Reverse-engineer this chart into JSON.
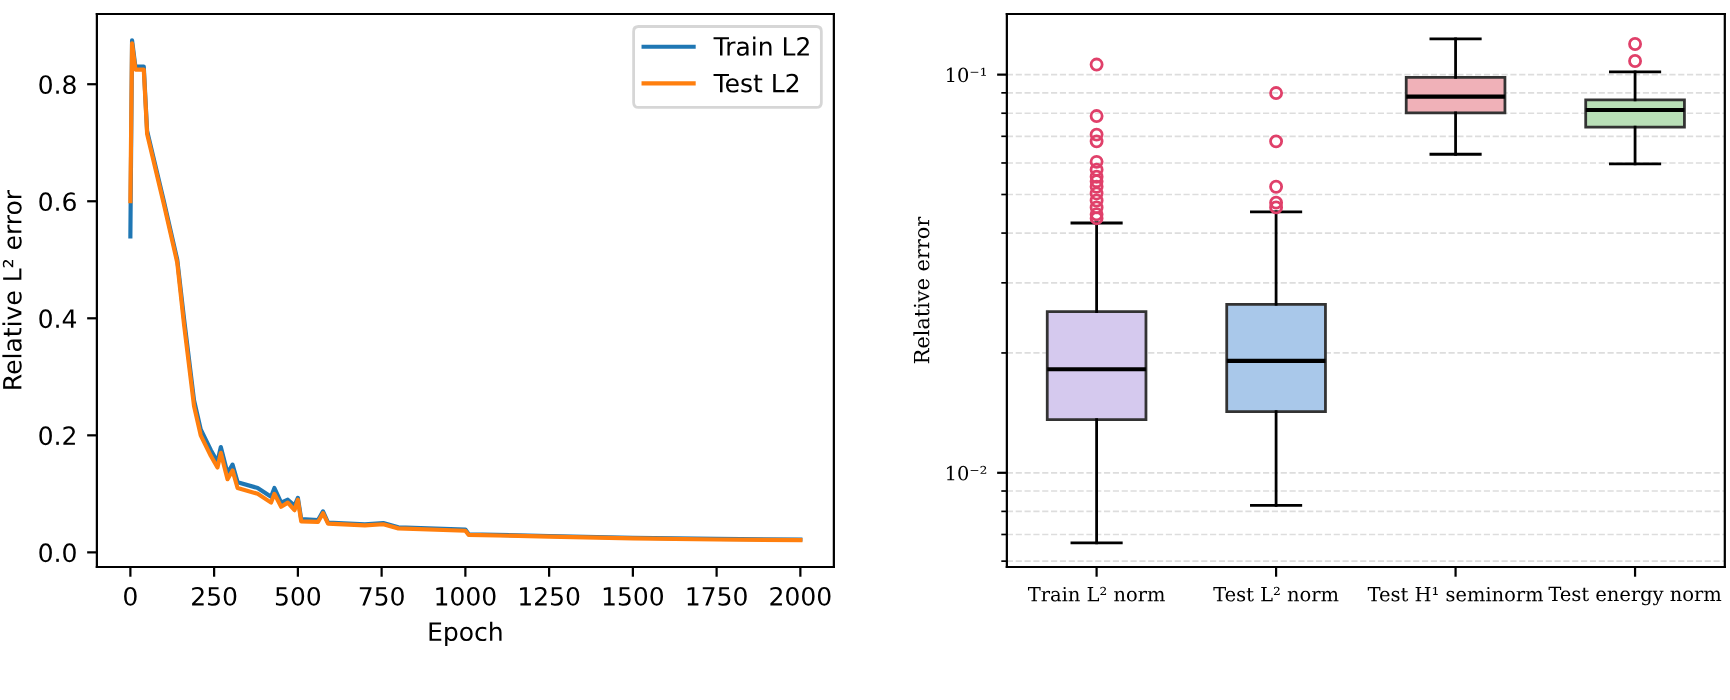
{
  "chart_data": [
    {
      "type": "line",
      "xlabel": "Epoch",
      "ylabel": "Relative L² error",
      "xlim": [
        -100,
        2100
      ],
      "ylim": [
        -0.025,
        0.92
      ],
      "xticks": [
        0,
        250,
        500,
        750,
        1000,
        1250,
        1500,
        1750,
        2000
      ],
      "yticks": [
        {
          "value": 0,
          "label": "0.0"
        },
        0.2,
        0.4,
        0.6,
        0.8
      ],
      "legend": "top right",
      "grid": false,
      "series": [
        {
          "name": "Train L2",
          "color": "#1f77b4",
          "x": [
            0,
            5,
            15,
            40,
            50,
            100,
            140,
            160,
            190,
            210,
            240,
            260,
            270,
            290,
            305,
            320,
            380,
            420,
            430,
            450,
            470,
            490,
            500,
            510,
            560,
            575,
            590,
            700,
            755,
            800,
            1000,
            1010,
            1250,
            1500,
            1750,
            2000
          ],
          "values": [
            0.54,
            0.875,
            0.83,
            0.83,
            0.72,
            0.6,
            0.5,
            0.4,
            0.26,
            0.21,
            0.175,
            0.155,
            0.18,
            0.135,
            0.15,
            0.12,
            0.11,
            0.095,
            0.11,
            0.085,
            0.09,
            0.08,
            0.093,
            0.057,
            0.055,
            0.07,
            0.051,
            0.048,
            0.05,
            0.043,
            0.039,
            0.031,
            0.028,
            0.025,
            0.023,
            0.022
          ]
        },
        {
          "name": "Test L2",
          "color": "#ff7f0e",
          "x": [
            0,
            5,
            15,
            40,
            50,
            100,
            140,
            160,
            190,
            210,
            240,
            260,
            270,
            290,
            305,
            320,
            380,
            420,
            430,
            450,
            470,
            490,
            500,
            510,
            560,
            575,
            590,
            700,
            755,
            800,
            1000,
            1010,
            1250,
            1500,
            1750,
            2000
          ],
          "values": [
            0.6,
            0.87,
            0.825,
            0.825,
            0.715,
            0.595,
            0.495,
            0.39,
            0.25,
            0.2,
            0.165,
            0.145,
            0.17,
            0.125,
            0.14,
            0.11,
            0.1,
            0.085,
            0.1,
            0.078,
            0.085,
            0.072,
            0.09,
            0.053,
            0.052,
            0.067,
            0.049,
            0.046,
            0.048,
            0.041,
            0.037,
            0.03,
            0.027,
            0.024,
            0.022,
            0.021
          ]
        }
      ]
    },
    {
      "type": "box",
      "ylabel": "Relative error",
      "log": "y",
      "ylim": [
        0.0058,
        0.142
      ],
      "yticks": [
        {
          "value": 0.01,
          "label": "10⁻²"
        },
        {
          "value": 0.1,
          "label": "10⁻¹"
        }
      ],
      "grid": "y",
      "categories": [
        "Train L² norm",
        "Test L² norm",
        "Test H¹ seminorm",
        "Test energy norm"
      ],
      "colors": [
        "#d5c9ee",
        "#a9c8ea",
        "#f0b1b8",
        "#b9dfb7"
      ],
      "boxes": [
        {
          "low": 0.00667,
          "q1": 0.0136,
          "median": 0.0182,
          "q3": 0.0254,
          "high": 0.0424,
          "outliers": [
            0.106,
            0.0787,
            0.0707,
            0.068,
            0.0604,
            0.0577,
            0.0554,
            0.054,
            0.0523,
            0.0503,
            0.0483,
            0.0464,
            0.0446,
            0.0436
          ]
        },
        {
          "low": 0.00828,
          "q1": 0.01425,
          "median": 0.0191,
          "q3": 0.0265,
          "high": 0.0452,
          "outliers": [
            0.0899,
            0.068,
            0.0523,
            0.0477,
            0.0464
          ]
        },
        {
          "low": 0.0631,
          "q1": 0.0802,
          "median": 0.0881,
          "q3": 0.0984,
          "high": 0.123
        },
        {
          "low": 0.0597,
          "q1": 0.0738,
          "median": 0.0815,
          "q3": 0.0864,
          "high": 0.1016,
          "outliers": [
            0.1194,
            0.1082
          ]
        }
      ]
    }
  ]
}
